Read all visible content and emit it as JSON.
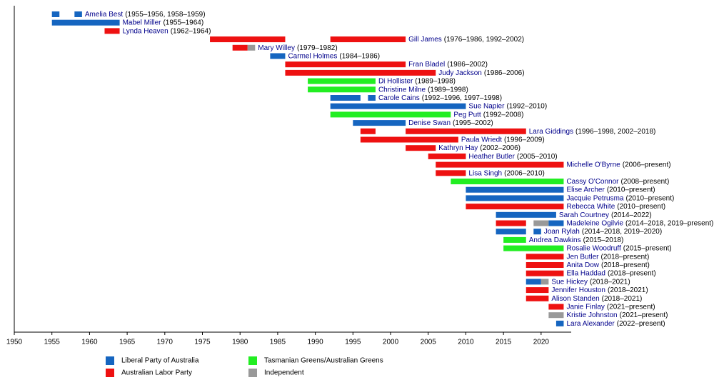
{
  "chart_data": {
    "type": "timeline",
    "xlim": [
      1950,
      2024
    ],
    "xticks": [
      1950,
      1955,
      1960,
      1965,
      1970,
      1975,
      1980,
      1985,
      1990,
      1995,
      2000,
      2005,
      2010,
      2015,
      2020
    ],
    "legend": [
      {
        "name": "Liberal Party of Australia",
        "color": "#1565c0"
      },
      {
        "name": "Australian Labor Party",
        "color": "#ee1111"
      },
      {
        "name": "Tasmanian Greens/Australian Greens",
        "color": "#22ee22"
      },
      {
        "name": "Independent",
        "color": "#999999"
      }
    ],
    "rows": [
      {
        "name": "Amelia Best",
        "years": "(1955–1956, 1958–1959)",
        "segments": [
          {
            "start": 1955,
            "end": 1956,
            "party": 0
          },
          {
            "start": 1958,
            "end": 1959,
            "party": 0
          }
        ]
      },
      {
        "name": "Mabel Miller",
        "years": "(1955–1964)",
        "segments": [
          {
            "start": 1955,
            "end": 1964,
            "party": 0
          }
        ]
      },
      {
        "name": "Lynda Heaven",
        "years": "(1962–1964)",
        "segments": [
          {
            "start": 1962,
            "end": 1964,
            "party": 1
          }
        ]
      },
      {
        "name": "Gill James",
        "years": "(1976–1986, 1992–2002)",
        "segments": [
          {
            "start": 1976,
            "end": 1986,
            "party": 1
          },
          {
            "start": 1992,
            "end": 2002,
            "party": 1
          }
        ]
      },
      {
        "name": "Mary Willey",
        "years": "(1979–1982)",
        "segments": [
          {
            "start": 1979,
            "end": 1981,
            "party": 1
          },
          {
            "start": 1981,
            "end": 1982,
            "party": 3
          }
        ]
      },
      {
        "name": "Carmel Holmes",
        "years": "(1984–1986)",
        "segments": [
          {
            "start": 1984,
            "end": 1986,
            "party": 0
          }
        ]
      },
      {
        "name": "Fran Bladel",
        "years": "(1986–2002)",
        "segments": [
          {
            "start": 1986,
            "end": 2002,
            "party": 1
          }
        ]
      },
      {
        "name": "Judy Jackson",
        "years": "(1986–2006)",
        "segments": [
          {
            "start": 1986,
            "end": 2006,
            "party": 1
          }
        ]
      },
      {
        "name": "Di Hollister",
        "years": "(1989–1998)",
        "segments": [
          {
            "start": 1989,
            "end": 1998,
            "party": 2
          }
        ]
      },
      {
        "name": "Christine Milne",
        "years": "(1989–1998)",
        "segments": [
          {
            "start": 1989,
            "end": 1998,
            "party": 2
          }
        ]
      },
      {
        "name": "Carole Cains",
        "years": "(1992–1996, 1997–1998)",
        "segments": [
          {
            "start": 1992,
            "end": 1996,
            "party": 0
          },
          {
            "start": 1997,
            "end": 1998,
            "party": 0
          }
        ]
      },
      {
        "name": "Sue Napier",
        "years": "(1992–2010)",
        "segments": [
          {
            "start": 1992,
            "end": 2010,
            "party": 0
          }
        ]
      },
      {
        "name": "Peg Putt",
        "years": "(1992–2008)",
        "segments": [
          {
            "start": 1992,
            "end": 2008,
            "party": 2
          }
        ]
      },
      {
        "name": "Denise Swan",
        "years": "(1995–2002)",
        "segments": [
          {
            "start": 1995,
            "end": 2002,
            "party": 0
          }
        ]
      },
      {
        "name": "Lara Giddings",
        "years": "(1996–1998, 2002–2018)",
        "segments": [
          {
            "start": 1996,
            "end": 1998,
            "party": 1
          },
          {
            "start": 2002,
            "end": 2018,
            "party": 1
          }
        ]
      },
      {
        "name": "Paula Wriedt",
        "years": "(1996–2009)",
        "segments": [
          {
            "start": 1996,
            "end": 2009,
            "party": 1
          }
        ]
      },
      {
        "name": "Kathryn Hay",
        "years": "(2002–2006)",
        "segments": [
          {
            "start": 2002,
            "end": 2006,
            "party": 1
          }
        ]
      },
      {
        "name": "Heather Butler",
        "years": "(2005–2010)",
        "segments": [
          {
            "start": 2005,
            "end": 2010,
            "party": 1
          }
        ]
      },
      {
        "name": "Michelle O'Byrne",
        "years": "(2006–present)",
        "segments": [
          {
            "start": 2006,
            "end": 2023,
            "party": 1
          }
        ]
      },
      {
        "name": "Lisa Singh",
        "years": "(2006–2010)",
        "segments": [
          {
            "start": 2006,
            "end": 2010,
            "party": 1
          }
        ]
      },
      {
        "name": "Cassy O'Connor",
        "years": "(2008–present)",
        "segments": [
          {
            "start": 2008,
            "end": 2023,
            "party": 2
          }
        ]
      },
      {
        "name": "Elise Archer",
        "years": "(2010–present)",
        "segments": [
          {
            "start": 2010,
            "end": 2023,
            "party": 0
          }
        ]
      },
      {
        "name": "Jacquie Petrusma",
        "years": "(2010–present)",
        "segments": [
          {
            "start": 2010,
            "end": 2023,
            "party": 0
          }
        ]
      },
      {
        "name": "Rebecca White",
        "years": "(2010–present)",
        "segments": [
          {
            "start": 2010,
            "end": 2023,
            "party": 1
          }
        ]
      },
      {
        "name": "Sarah Courtney",
        "years": "(2014–2022)",
        "segments": [
          {
            "start": 2014,
            "end": 2022,
            "party": 0
          }
        ]
      },
      {
        "name": "Madeleine Ogilvie",
        "years": "(2014–2018, 2019–present)",
        "segments": [
          {
            "start": 2014,
            "end": 2018,
            "party": 1
          },
          {
            "start": 2019,
            "end": 2021,
            "party": 3
          },
          {
            "start": 2021,
            "end": 2023,
            "party": 0
          }
        ]
      },
      {
        "name": "Joan Rylah",
        "years": "(2014–2018, 2019–2020)",
        "segments": [
          {
            "start": 2014,
            "end": 2018,
            "party": 0
          },
          {
            "start": 2019,
            "end": 2020,
            "party": 0
          }
        ]
      },
      {
        "name": "Andrea Dawkins",
        "years": "(2015–2018)",
        "segments": [
          {
            "start": 2015,
            "end": 2018,
            "party": 2
          }
        ]
      },
      {
        "name": "Rosalie Woodruff",
        "years": "(2015–present)",
        "segments": [
          {
            "start": 2015,
            "end": 2023,
            "party": 2
          }
        ]
      },
      {
        "name": "Jen Butler",
        "years": "(2018–present)",
        "segments": [
          {
            "start": 2018,
            "end": 2023,
            "party": 1
          }
        ]
      },
      {
        "name": "Anita Dow",
        "years": "(2018–present)",
        "segments": [
          {
            "start": 2018,
            "end": 2023,
            "party": 1
          }
        ]
      },
      {
        "name": "Ella Haddad",
        "years": "(2018–present)",
        "segments": [
          {
            "start": 2018,
            "end": 2023,
            "party": 1
          }
        ]
      },
      {
        "name": "Sue Hickey",
        "years": "(2018–2021)",
        "segments": [
          {
            "start": 2018,
            "end": 2020,
            "party": 0
          },
          {
            "start": 2020,
            "end": 2021,
            "party": 3
          }
        ]
      },
      {
        "name": "Jennifer Houston",
        "years": "(2018–2021)",
        "segments": [
          {
            "start": 2018,
            "end": 2021,
            "party": 1
          }
        ]
      },
      {
        "name": "Alison Standen",
        "years": "(2018–2021)",
        "segments": [
          {
            "start": 2018,
            "end": 2021,
            "party": 1
          }
        ]
      },
      {
        "name": "Janie Finlay",
        "years": "(2021–present)",
        "segments": [
          {
            "start": 2021,
            "end": 2023,
            "party": 1
          }
        ]
      },
      {
        "name": "Kristie Johnston",
        "years": "(2021–present)",
        "segments": [
          {
            "start": 2021,
            "end": 2023,
            "party": 3
          }
        ]
      },
      {
        "name": "Lara Alexander",
        "years": "(2022–present)",
        "segments": [
          {
            "start": 2022,
            "end": 2023,
            "party": 0
          }
        ]
      }
    ]
  }
}
